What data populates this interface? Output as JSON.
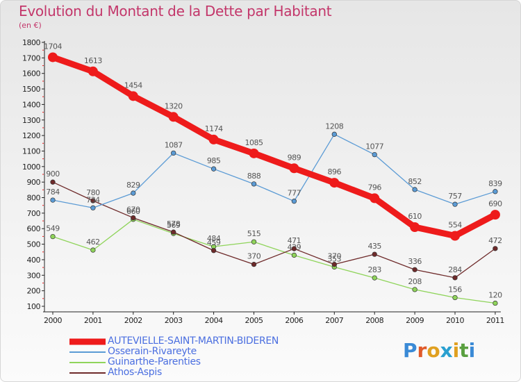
{
  "title": "Evolution du Montant de la Dette par Habitant",
  "subtitle": "(en €)",
  "brand": {
    "text": "Proxiti",
    "letters": [
      "P",
      "r",
      "o",
      "x",
      "i",
      "t",
      "i"
    ],
    "colors": [
      "#3a8ad6",
      "#e05a2a",
      "#e0a020",
      "#2aa0d0",
      "#e0a020",
      "#5aa040",
      "#3a8ad6"
    ]
  },
  "chart_data": {
    "type": "line",
    "categories": [
      "2000",
      "2001",
      "2002",
      "2003",
      "2004",
      "2005",
      "2006",
      "2007",
      "2008",
      "2009",
      "2010",
      "2011"
    ],
    "ylim": [
      100,
      1800
    ],
    "yticks": [
      100,
      200,
      300,
      400,
      500,
      600,
      700,
      800,
      900,
      1000,
      1100,
      1200,
      1300,
      1400,
      1500,
      1600,
      1700,
      1800
    ],
    "grid": false,
    "legend_position": "bottom-left",
    "series": [
      {
        "name": "Guinarthe-Parenties",
        "color": "#8fd45a",
        "values": [
          549,
          462,
          660,
          569,
          484,
          515,
          429,
          353,
          283,
          208,
          156,
          120
        ]
      },
      {
        "name": "Athos-Aspis",
        "color": "#6e2a2a",
        "values": [
          900,
          780,
          670,
          578,
          459,
          370,
          471,
          370,
          435,
          336,
          284,
          472
        ]
      },
      {
        "name": "Osserain-Rivareyte",
        "color": "#5b9bd5",
        "values": [
          784,
          734,
          829,
          1087,
          985,
          888,
          777,
          1208,
          1077,
          852,
          757,
          839
        ]
      },
      {
        "name": "AUTEVIELLE-SAINT-MARTIN-BIDEREN",
        "color": "#ee1b1b",
        "values": [
          1704,
          1613,
          1454,
          1320,
          1174,
          1085,
          989,
          896,
          796,
          610,
          554,
          690
        ]
      }
    ],
    "legend_order": [
      "AUTEVIELLE-SAINT-MARTIN-BIDEREN",
      "Osserain-Rivareyte",
      "Guinarthe-Parenties",
      "Athos-Aspis"
    ]
  }
}
